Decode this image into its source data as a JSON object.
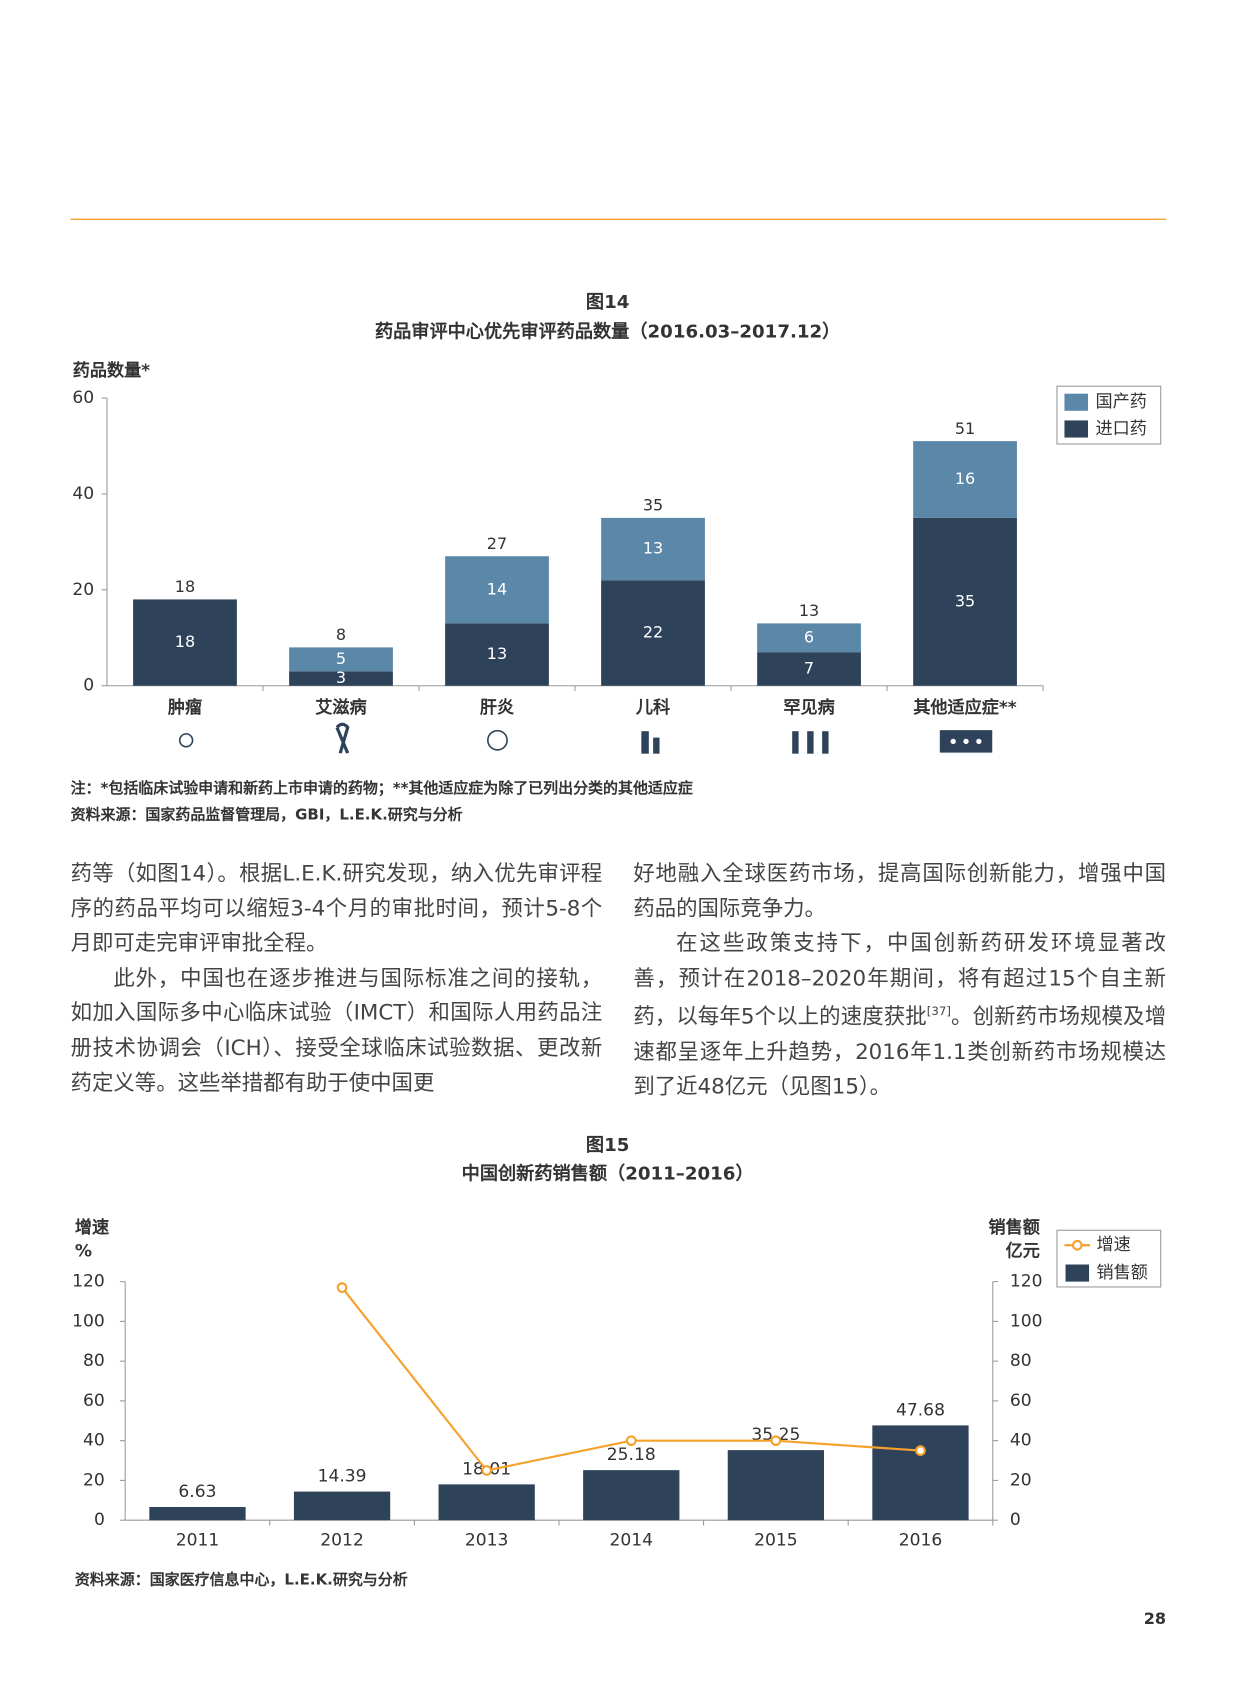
{
  "chart_data": [
    {
      "type": "bar",
      "stacked": true,
      "title": "图14",
      "subtitle": "药品审评中心优先审评药品数量（2016.03–2017.12）",
      "y_label": "药品数量*",
      "categories": [
        "肿瘤",
        "艾滋病",
        "肝炎",
        "儿科",
        "罕见病",
        "其他适应症**"
      ],
      "series": [
        {
          "name": "进口药",
          "color": "#2e4359",
          "values": [
            18,
            3,
            13,
            22,
            7,
            35
          ]
        },
        {
          "name": "国产药",
          "color": "#5b87a9",
          "values": [
            null,
            5,
            14,
            13,
            6,
            16
          ]
        }
      ],
      "totals": [
        18,
        8,
        27,
        35,
        13,
        51
      ],
      "ylim": [
        0,
        60
      ],
      "yticks": [
        0,
        20,
        40,
        60
      ],
      "grid": false,
      "legend": "top-right",
      "note": "注：*包括临床试验申请和新药上市申请的药物；**其他适应症为除了已列出分类的其他适应症",
      "source": "资料来源：国家药品监督管理局，GBI，L.E.K.研究与分析"
    },
    {
      "type": "combo",
      "title": "图15",
      "subtitle": "中国创新药销售额（2011–2016）",
      "y_label": "增速",
      "y_unit": "%",
      "y2_label": "销售额",
      "y2_unit": "亿元",
      "categories": [
        "2011",
        "2012",
        "2013",
        "2014",
        "2015",
        "2016"
      ],
      "series": [
        {
          "name": "增速",
          "type": "line",
          "color": "#f5a12b",
          "axis": "y",
          "values": [
            null,
            117,
            25,
            40,
            40,
            35
          ]
        },
        {
          "name": "销售额",
          "type": "bar",
          "color": "#2e4359",
          "axis": "y2",
          "values": [
            6.63,
            14.39,
            18.01,
            25.18,
            35.25,
            47.68
          ]
        }
      ],
      "ylim": [
        0,
        120
      ],
      "yticks": [
        0,
        20,
        40,
        60,
        80,
        100,
        120
      ],
      "y2lim": [
        0,
        120
      ],
      "y2ticks": [
        0,
        20,
        40,
        60,
        80,
        100,
        120
      ],
      "grid": false,
      "legend": "top-right",
      "source": "资料来源：国家医疗信息中心，L.E.K.研究与分析"
    }
  ],
  "body": {
    "left": [
      "药等（如图14）。根据L.E.K.研究发现，纳入优先审评程序的药品平均可以缩短3-4个月的审批时间，预计5-8个月即可走完审评审批全程。",
      "此外，中国也在逐步推进与国际标准之间的接轨，如加入国际多中心临床试验（IMCT）和国际人用药品注册技术协调会（ICH）、接受全球临床试验数据、更改新药定义等。这些举措都有助于使中国更"
    ],
    "right_first": "好地融入全球医药市场，提高国际创新能力，增强中国药品的国际竞争力。",
    "right_second": {
      "before": "在这些政策支持下，中国创新药研发环境显著改善，预计在2018–2020年期间，将有超过15个自主新药，以每年5个以上的速度获批",
      "citation": "[37]",
      "after": "。创新药市场规模及增速都呈逐年上升趋势，2016年1.1类创新药市场规模达到了近48亿元（见图15）。"
    }
  },
  "page_number": "28"
}
